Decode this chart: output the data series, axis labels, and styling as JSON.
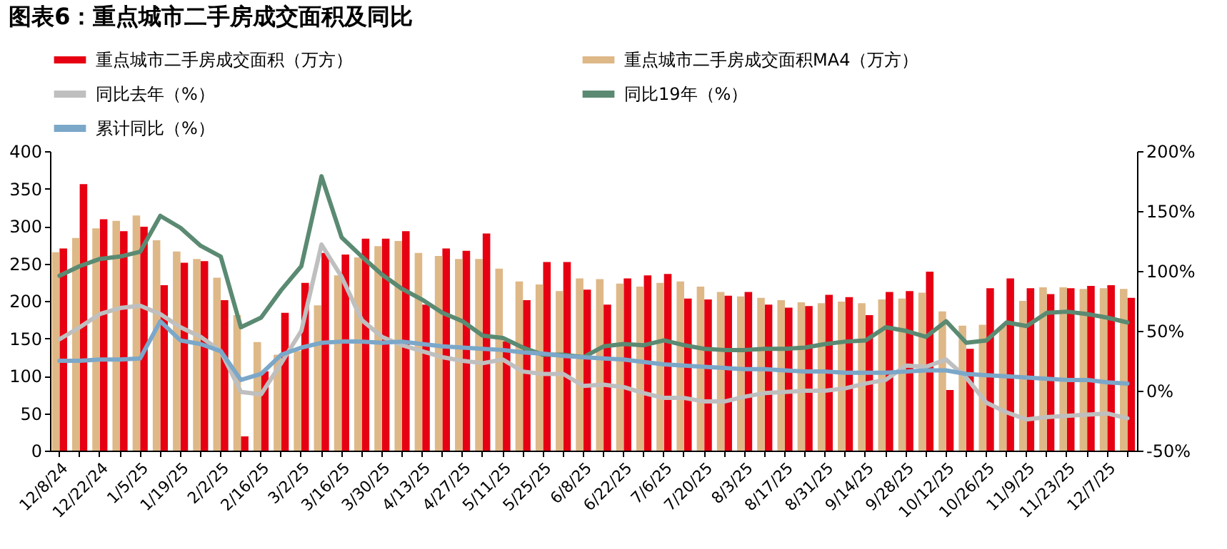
{
  "chart_data": {
    "type": "bar",
    "title": "图表6：重点城市二手房成交面积及同比",
    "categories": [
      "12/8/24",
      null,
      "12/22/24",
      null,
      "1/5/25",
      null,
      "1/19/25",
      null,
      "2/2/25",
      null,
      "2/16/25",
      null,
      "3/2/25",
      null,
      "3/16/25",
      null,
      "3/30/25",
      null,
      "4/13/25",
      null,
      "4/27/25",
      null,
      "5/11/25",
      null,
      "5/25/25",
      null,
      "6/8/25",
      null,
      "6/22/25",
      null,
      "7/6/25",
      null,
      "7/20/25",
      null,
      "8/3/25",
      null,
      "8/17/25",
      null,
      "8/31/25",
      null,
      "9/14/25",
      null,
      "9/28/25",
      null,
      "10/12/25",
      null,
      "10/26/25",
      null,
      "11/9/25",
      null,
      "11/23/25",
      null,
      "12/7/25",
      null
    ],
    "series": [
      {
        "name": "重点城市二手房成交面积（万方）",
        "color": "#e60012",
        "values": [
          270,
          356,
          309,
          293,
          299,
          221,
          251,
          253,
          201,
          19,
          106,
          184,
          224,
          264,
          262,
          283,
          283,
          293,
          195,
          270,
          267,
          290,
          146,
          201,
          252,
          252,
          215,
          195,
          230,
          234,
          236,
          203,
          202,
          207,
          212,
          195,
          191,
          193,
          208,
          205,
          181,
          212,
          213,
          239,
          81,
          136,
          217,
          230,
          217,
          209,
          217,
          220,
          221,
          204
        ]
      },
      {
        "name": "重点城市二手房成交面积MA4（万方）",
        "color": "#deb887",
        "values": [
          265,
          284,
          297,
          307,
          314,
          281,
          266,
          256,
          231,
          181,
          145,
          128,
          133,
          194,
          234,
          258,
          273,
          280,
          264,
          260,
          256,
          256,
          243,
          226,
          222,
          213,
          230,
          229,
          223,
          219,
          224,
          226,
          219,
          212,
          206,
          204,
          201,
          198,
          197,
          199,
          197,
          202,
          203,
          211,
          186,
          167,
          168,
          166,
          200,
          218,
          218,
          216,
          217,
          216
        ]
      },
      {
        "name": "同比去年（%）",
        "type": "line",
        "axis": "y2",
        "color": "#bfbfbf",
        "values": [
          43,
          53,
          64,
          69,
          71,
          64,
          53,
          45,
          33,
          -1,
          -3,
          23,
          50,
          122,
          95,
          59,
          45,
          38,
          33,
          28,
          25,
          23,
          26,
          16,
          14,
          14,
          4,
          5,
          3,
          -2,
          -6,
          -6,
          -9,
          -9,
          -5,
          -2,
          -1,
          0,
          0,
          2,
          6,
          9,
          21,
          20,
          26,
          11,
          -10,
          -18,
          -24,
          -22,
          -21,
          -20,
          -19,
          -23
        ]
      },
      {
        "name": "同比19年（%）",
        "type": "line",
        "axis": "y2",
        "color": "#5b8a72",
        "values": [
          96,
          104,
          110,
          112,
          116,
          146,
          136,
          121,
          112,
          53,
          61,
          84,
          104,
          179,
          128,
          112,
          97,
          85,
          76,
          65,
          58,
          46,
          44,
          36,
          30,
          30,
          28,
          37,
          39,
          38,
          42,
          38,
          35,
          34,
          34,
          35,
          35,
          36,
          39,
          41,
          42,
          53,
          50,
          45,
          58,
          40,
          42,
          57,
          54,
          65,
          66,
          64,
          61,
          57
        ]
      },
      {
        "name": "累计同比（%）",
        "type": "line",
        "axis": "y2",
        "color": "#7ba7c9",
        "values": [
          25,
          25,
          26,
          26,
          27,
          58,
          42,
          39,
          33,
          9,
          14,
          30,
          36,
          40,
          41,
          41,
          40,
          41,
          39,
          37,
          36,
          35,
          34,
          32,
          31,
          29,
          28,
          27,
          26,
          24,
          22,
          21,
          20,
          19,
          18,
          18,
          17,
          16,
          16,
          15,
          15,
          15,
          16,
          17,
          17,
          14,
          13,
          12,
          11,
          10,
          9,
          9,
          7,
          6
        ]
      }
    ],
    "ylim": [
      0,
      400
    ],
    "yticks": [
      0,
      50,
      100,
      150,
      200,
      250,
      300,
      350,
      400
    ],
    "y2lim": [
      -50,
      200
    ],
    "y2ticks": [
      {
        "value": -50,
        "label": "-50%"
      },
      {
        "value": 0,
        "label": "0%"
      },
      {
        "value": 50,
        "label": "50%"
      },
      {
        "value": 100,
        "label": "100%"
      },
      {
        "value": 150,
        "label": "150%"
      },
      {
        "value": 200,
        "label": "200%"
      }
    ],
    "legend": "top"
  }
}
